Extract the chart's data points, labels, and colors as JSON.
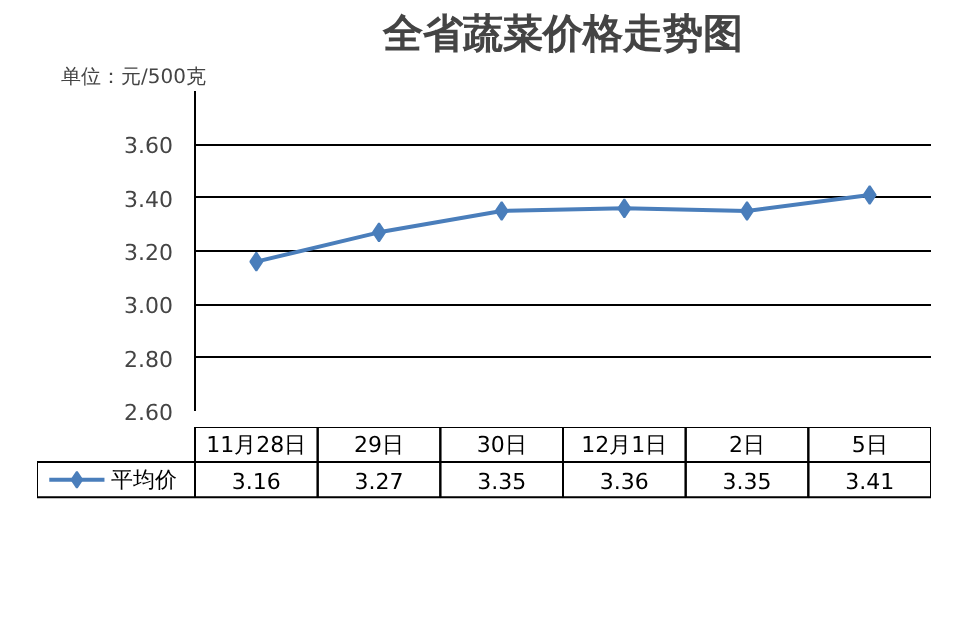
{
  "chart_data": {
    "type": "line",
    "title": "全省蔬菜价格走势图",
    "ylabel": "单位：元/500克",
    "categories": [
      "11月28日",
      "29日",
      "30日",
      "12月1日",
      "2日",
      "5日"
    ],
    "series": [
      {
        "name": "平均价",
        "color": "#4a7ebb",
        "values": [
          3.16,
          3.27,
          3.35,
          3.36,
          3.35,
          3.41
        ],
        "value_labels": [
          "3.16",
          "3.27",
          "3.35",
          "3.36",
          "3.35",
          "3.41"
        ]
      }
    ],
    "ylim": [
      2.6,
      3.8
    ],
    "yticks": [
      {
        "value": 2.6,
        "label": "2.60"
      },
      {
        "value": 2.8,
        "label": "2.80"
      },
      {
        "value": 3.0,
        "label": "3.00"
      },
      {
        "value": 3.2,
        "label": "3.20"
      },
      {
        "value": 3.4,
        "label": "3.40"
      },
      {
        "value": 3.6,
        "label": "3.60"
      }
    ],
    "grid": "y",
    "marker": "diamond"
  }
}
